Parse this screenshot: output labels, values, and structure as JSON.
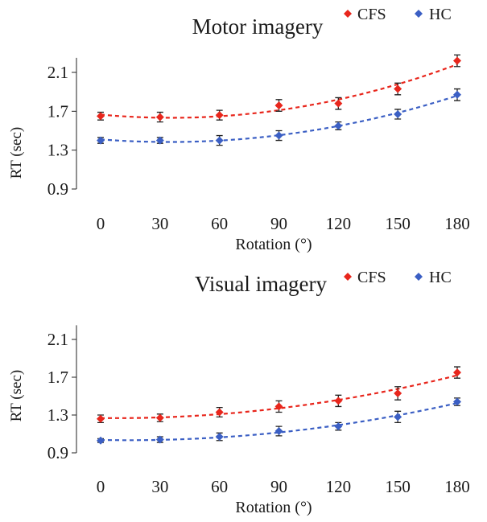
{
  "chart_data": [
    {
      "type": "scatter",
      "title": "Motor imagery",
      "xlabel": "Rotation (°)",
      "ylabel": "RT (sec)",
      "x": [
        0,
        30,
        60,
        90,
        120,
        150,
        180
      ],
      "x_ticks": [
        "0",
        "30",
        "60",
        "90",
        "120",
        "150",
        "180"
      ],
      "y_ticks": [
        "0.9",
        "1.3",
        "1.7",
        "2.1"
      ],
      "ylim": [
        0.9,
        2.25
      ],
      "legend_position": "top-right",
      "grid": false,
      "trendlines": "dashed polynomial fit per series",
      "series": [
        {
          "name": "CFS",
          "color": "#e8261c",
          "values": [
            1.65,
            1.64,
            1.66,
            1.76,
            1.78,
            1.93,
            2.22
          ],
          "errors": [
            0.04,
            0.05,
            0.05,
            0.06,
            0.06,
            0.06,
            0.06
          ]
        },
        {
          "name": "HC",
          "color": "#3b5fc4",
          "values": [
            1.4,
            1.4,
            1.4,
            1.45,
            1.55,
            1.67,
            1.87
          ],
          "errors": [
            0.03,
            0.03,
            0.05,
            0.05,
            0.04,
            0.05,
            0.06
          ]
        }
      ]
    },
    {
      "type": "scatter",
      "title": "Visual imagery",
      "xlabel": "Rotation (°)",
      "ylabel": "RT (sec)",
      "x": [
        0,
        30,
        60,
        90,
        120,
        150,
        180
      ],
      "x_ticks": [
        "0",
        "30",
        "60",
        "90",
        "120",
        "150",
        "180"
      ],
      "y_ticks": [
        "0.9",
        "1.3",
        "1.7",
        "2.1"
      ],
      "ylim": [
        0.9,
        2.25
      ],
      "legend_position": "top-right",
      "grid": false,
      "trendlines": "dashed polynomial fit per series",
      "series": [
        {
          "name": "CFS",
          "color": "#e8261c",
          "values": [
            1.26,
            1.27,
            1.33,
            1.39,
            1.45,
            1.53,
            1.75
          ],
          "errors": [
            0.04,
            0.04,
            0.05,
            0.06,
            0.06,
            0.07,
            0.06
          ]
        },
        {
          "name": "HC",
          "color": "#3b5fc4",
          "values": [
            1.03,
            1.04,
            1.07,
            1.13,
            1.18,
            1.28,
            1.44
          ],
          "errors": [
            0.02,
            0.03,
            0.04,
            0.05,
            0.04,
            0.06,
            0.04
          ]
        }
      ]
    }
  ]
}
